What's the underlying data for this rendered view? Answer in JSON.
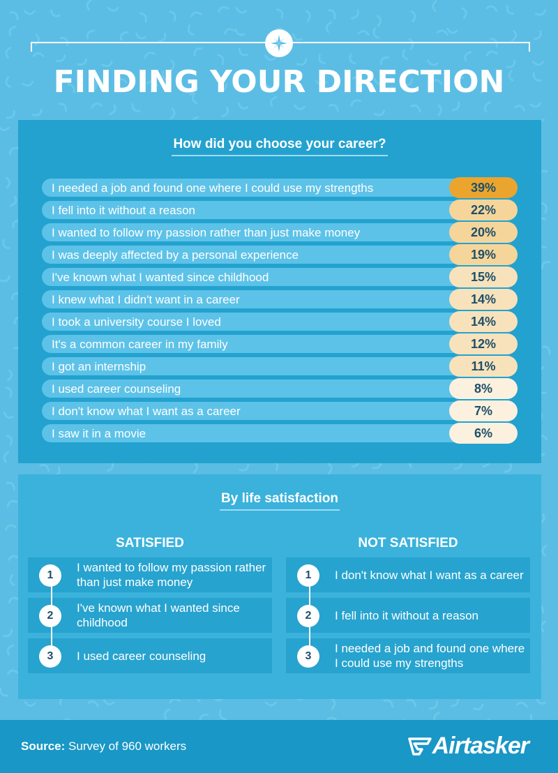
{
  "header": {
    "title": "FINDING YOUR DIRECTION"
  },
  "chart_data": {
    "type": "bar",
    "title": "How did you choose your career?",
    "categories": [
      "I needed a job and found one where I could use my strengths",
      "I fell into it without a reason",
      "I wanted to follow my passion rather than just make money",
      "I was deeply affected by a personal experience",
      "I've known what I wanted since childhood",
      "I knew what I didn't want in a career",
      "I took a university course I loved",
      "It's a common career in my family",
      "I got an internship",
      "I used career counseling",
      "I don't know what I want as a career",
      "I saw it in a movie"
    ],
    "values": [
      39,
      22,
      20,
      19,
      15,
      14,
      14,
      12,
      11,
      8,
      7,
      6
    ],
    "value_labels": [
      "39%",
      "22%",
      "20%",
      "19%",
      "15%",
      "14%",
      "14%",
      "12%",
      "11%",
      "8%",
      "7%",
      "6%"
    ],
    "unit": "%",
    "colors": {
      "highlight": "#eba52e",
      "high": "#f6d59a",
      "mid": "#f8e2bb",
      "low": "#fbf1de"
    }
  },
  "satisfaction": {
    "heading": "By life satisfaction",
    "satisfied": {
      "heading": "SATISFIED",
      "items": [
        {
          "rank": "1",
          "text": "I wanted to follow my passion rather than just make money"
        },
        {
          "rank": "2",
          "text": "I've known what I wanted since childhood"
        },
        {
          "rank": "3",
          "text": "I used career counseling"
        }
      ]
    },
    "not_satisfied": {
      "heading": "NOT SATISFIED",
      "items": [
        {
          "rank": "1",
          "text": "I don't know what I want as a career"
        },
        {
          "rank": "2",
          "text": "I fell into it without a reason"
        },
        {
          "rank": "3",
          "text": "I needed a job and found one where I could use my strengths"
        }
      ]
    }
  },
  "footer": {
    "source_label": "Source:",
    "source_text": "Survey of 960 workers",
    "brand": "Airtasker"
  }
}
